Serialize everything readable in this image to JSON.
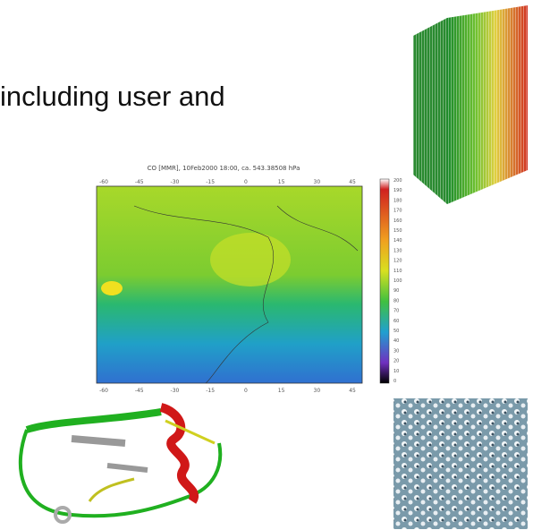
{
  "slide": {
    "text": "including user and"
  },
  "map": {
    "title": "CO [MMR], 10Feb2000 18:00, ca. 543.38508 hPa",
    "x_labels": [
      "-60",
      "-45",
      "-30",
      "-15",
      "0",
      "15",
      "30",
      "45"
    ],
    "colorbar_labels": [
      "200",
      "190",
      "180",
      "170",
      "160",
      "150",
      "140",
      "130",
      "120",
      "110",
      "100",
      "90",
      "80",
      "70",
      "60",
      "50",
      "40",
      "30",
      "20",
      "10",
      "0"
    ]
  }
}
